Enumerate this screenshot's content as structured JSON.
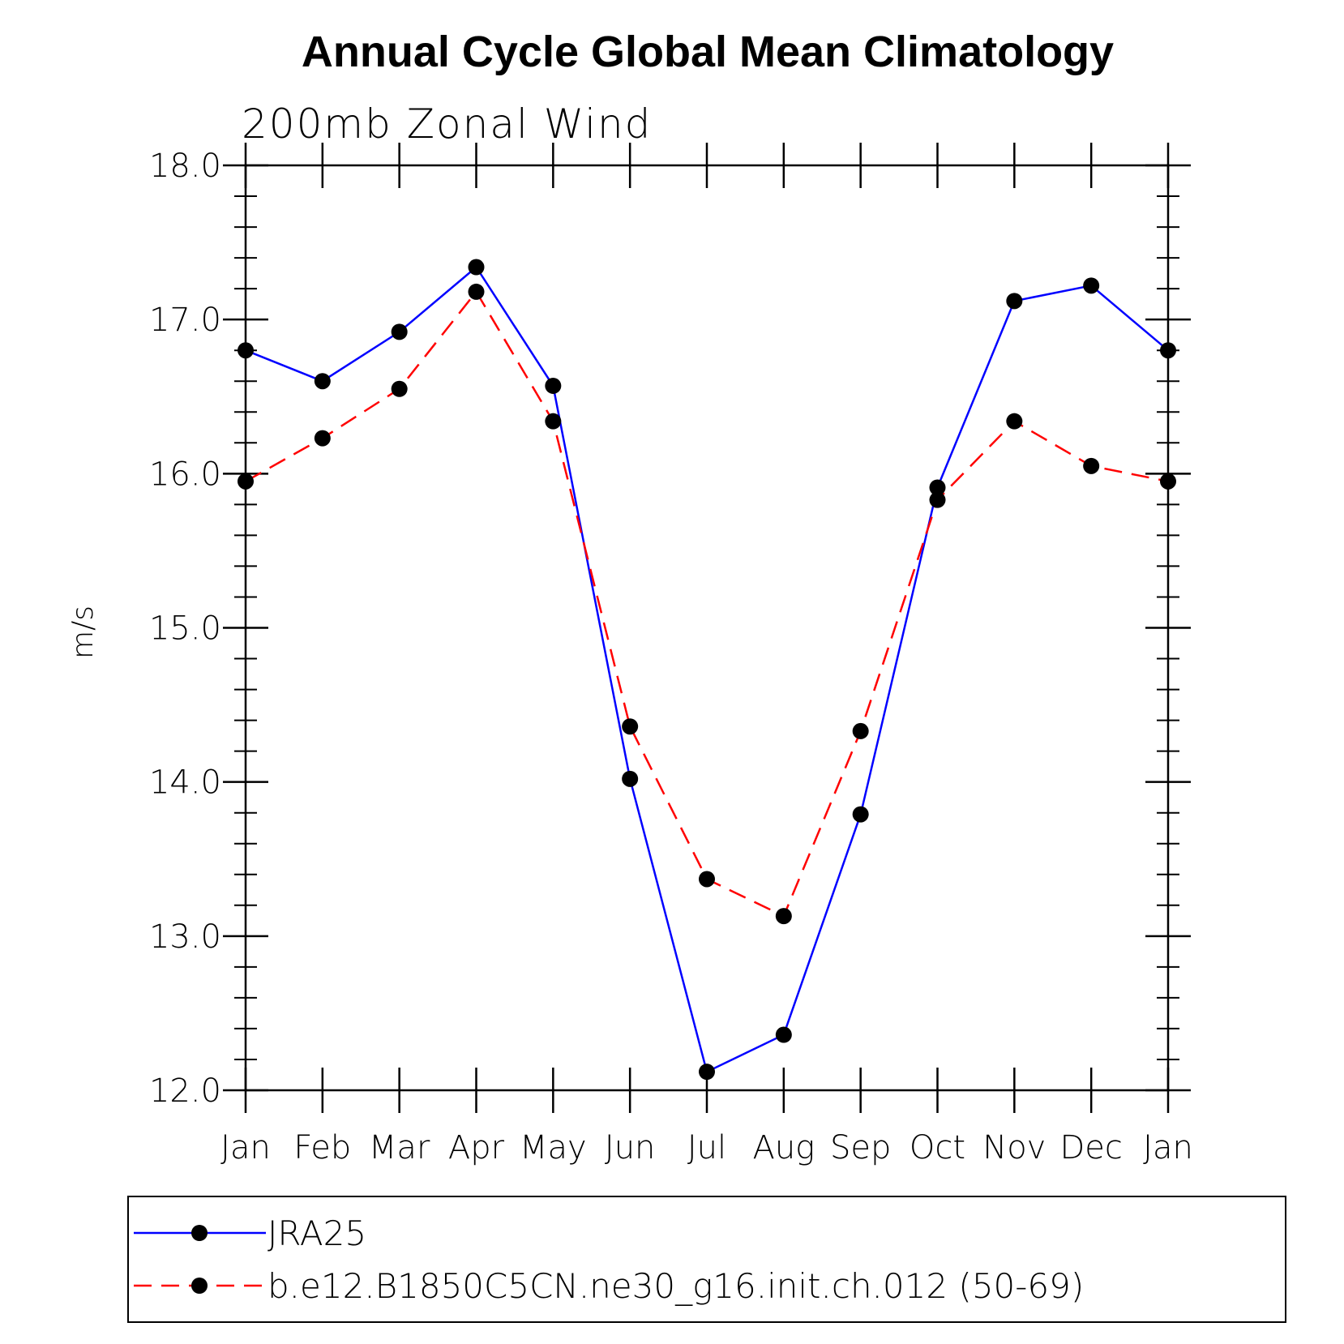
{
  "chart_data": {
    "type": "line",
    "title": "Annual Cycle Global Mean Climatology",
    "subtitle": "200mb Zonal Wind",
    "ylabel": "m/s",
    "xlabel": "",
    "categories": [
      "Jan",
      "Feb",
      "Mar",
      "Apr",
      "May",
      "Jun",
      "Jul",
      "Aug",
      "Sep",
      "Oct",
      "Nov",
      "Dec",
      "Jan"
    ],
    "ylim": [
      12.0,
      18.0
    ],
    "yticks": [
      12.0,
      13.0,
      14.0,
      15.0,
      16.0,
      17.0,
      18.0
    ],
    "ytick_labels": [
      "12.0",
      "13.0",
      "14.0",
      "15.0",
      "16.0",
      "17.0",
      "18.0"
    ],
    "grid": false,
    "legend_position": "bottom",
    "series": [
      {
        "name": "JRA25",
        "color": "#0000ff",
        "dash": "solid",
        "values": [
          16.8,
          16.6,
          16.92,
          17.34,
          16.57,
          14.02,
          12.12,
          12.36,
          13.79,
          15.91,
          17.12,
          17.22,
          16.8
        ]
      },
      {
        "name": "b.e12.B1850C5CN.ne30_g16.init.ch.012 (50-69)",
        "color": "#ff0000",
        "dash": "dashed",
        "values": [
          15.95,
          16.23,
          16.55,
          17.18,
          16.34,
          14.36,
          13.37,
          13.13,
          14.33,
          15.83,
          16.34,
          16.05,
          15.95
        ]
      }
    ]
  }
}
